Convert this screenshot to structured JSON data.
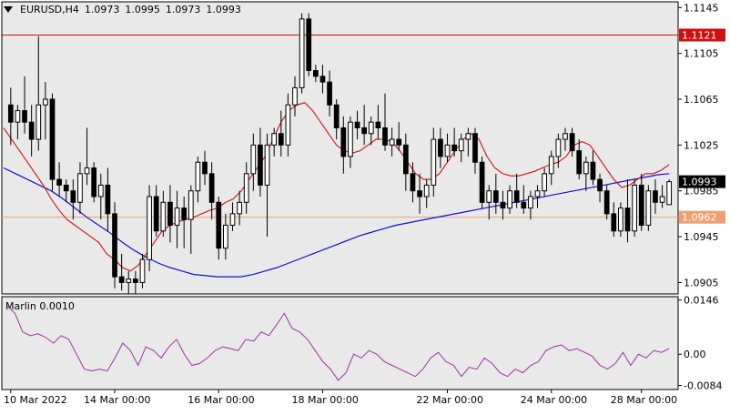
{
  "header": {
    "symbol": "EURUSD,H4",
    "open": "1.0973",
    "high": "1.0995",
    "low": "1.0973",
    "close": "1.0993"
  },
  "indicator": {
    "label": "Marlin 0.0010"
  },
  "colors": {
    "background": "#e9e9e9",
    "candle": "#000000",
    "resistance_line": "#d01010",
    "current_line": "#f0a070",
    "ma_fast": "#d01010",
    "ma_slow": "#1010d0",
    "oscillator": "#a030a0"
  },
  "chart_data": {
    "type": "candlestick",
    "price_axis": {
      "ticks": [
        "1.1145",
        "1.1105",
        "1.1065",
        "1.1025",
        "1.0985",
        "1.0945",
        "1.0905"
      ],
      "range": [
        1.0895,
        1.115
      ]
    },
    "levels": [
      {
        "value": 1.1121,
        "label": "1.1121",
        "color": "#d01010",
        "tag_bg": "#d01010",
        "tag_fg": "#ffffff"
      },
      {
        "value": 1.0962,
        "label": "1.0962",
        "color": "#f0a070",
        "tag_bg": "#f0a070",
        "tag_fg": "#ffffff"
      }
    ],
    "current_price": {
      "value": 1.0993,
      "label": "1.0993"
    },
    "x_labels": [
      "10 Mar 2022",
      "14 Mar 00:00",
      "16 Mar 00:00",
      "18 Mar 00:00",
      "22 Mar 00:00",
      "24 Mar 00:00",
      "28 Mar 00:00"
    ],
    "candles": [
      [
        1.106,
        1.1075,
        1.1025,
        1.1045
      ],
      [
        1.1045,
        1.106,
        1.103,
        1.1055
      ],
      [
        1.1055,
        1.1085,
        1.1035,
        1.1045
      ],
      [
        1.1045,
        1.106,
        1.1015,
        1.103
      ],
      [
        1.103,
        1.112,
        1.102,
        1.106
      ],
      [
        1.106,
        1.108,
        1.103,
        1.1065
      ],
      [
        1.1065,
        1.107,
        1.0985,
        1.0995
      ],
      [
        1.0995,
        1.101,
        1.098,
        1.099
      ],
      [
        1.099,
        1.0995,
        1.0975,
        1.0985
      ],
      [
        1.0985,
        1.0995,
        1.096,
        1.0975
      ],
      [
        1.0975,
        1.101,
        1.0965,
        1.1
      ],
      [
        1.1,
        1.104,
        1.099,
        1.1005
      ],
      [
        1.1005,
        1.101,
        1.0975,
        1.098
      ],
      [
        1.098,
        1.1,
        1.096,
        1.099
      ],
      [
        1.099,
        1.1005,
        1.095,
        1.0965
      ],
      [
        1.0965,
        1.0975,
        1.09,
        1.091
      ],
      [
        1.091,
        1.093,
        1.0898,
        1.0905
      ],
      [
        1.0905,
        1.0915,
        1.0895,
        1.0908
      ],
      [
        1.0908,
        1.0915,
        1.0895,
        1.0905
      ],
      [
        1.0905,
        1.093,
        1.09,
        1.0925
      ],
      [
        1.0925,
        1.099,
        1.0915,
        1.098
      ],
      [
        1.098,
        1.099,
        1.0945,
        1.095
      ],
      [
        1.095,
        1.0985,
        1.0945,
        1.0975
      ],
      [
        1.0975,
        1.099,
        1.094,
        1.0955
      ],
      [
        1.0955,
        1.0985,
        1.0935,
        1.097
      ],
      [
        1.097,
        1.098,
        1.0935,
        1.096
      ],
      [
        1.096,
        1.099,
        1.093,
        1.0985
      ],
      [
        1.0985,
        1.1015,
        1.0975,
        1.101
      ],
      [
        1.101,
        1.102,
        1.099,
        1.1
      ],
      [
        1.1,
        1.101,
        1.096,
        1.0975
      ],
      [
        1.0975,
        1.098,
        1.0925,
        1.0935
      ],
      [
        1.0935,
        1.0965,
        1.0925,
        1.0955
      ],
      [
        1.0955,
        1.0975,
        1.095,
        1.0965
      ],
      [
        1.0965,
        1.0985,
        1.0955,
        1.0975
      ],
      [
        1.0975,
        1.101,
        1.0965,
        1.1
      ],
      [
        1.1,
        1.1035,
        1.0985,
        1.1025
      ],
      [
        1.1025,
        1.104,
        1.098,
        1.099
      ],
      [
        1.099,
        1.1035,
        1.0945,
        1.1025
      ],
      [
        1.1025,
        1.104,
        1.1015,
        1.1035
      ],
      [
        1.1035,
        1.1055,
        1.1015,
        1.1025
      ],
      [
        1.1025,
        1.107,
        1.1015,
        1.106
      ],
      [
        1.106,
        1.1085,
        1.105,
        1.1075
      ],
      [
        1.1075,
        1.114,
        1.107,
        1.1135
      ],
      [
        1.1135,
        1.114,
        1.1085,
        1.109
      ],
      [
        1.109,
        1.1095,
        1.108,
        1.1085
      ],
      [
        1.1085,
        1.1095,
        1.107,
        1.108
      ],
      [
        1.108,
        1.109,
        1.105,
        1.106
      ],
      [
        1.106,
        1.1065,
        1.103,
        1.104
      ],
      [
        1.104,
        1.105,
        1.1,
        1.1015
      ],
      [
        1.1015,
        1.105,
        1.1005,
        1.1045
      ],
      [
        1.1045,
        1.1055,
        1.103,
        1.104
      ],
      [
        1.104,
        1.106,
        1.1025,
        1.1035
      ],
      [
        1.1035,
        1.105,
        1.1025,
        1.1045
      ],
      [
        1.1045,
        1.106,
        1.103,
        1.104
      ],
      [
        1.104,
        1.107,
        1.102,
        1.1025
      ],
      [
        1.1025,
        1.104,
        1.1015,
        1.103
      ],
      [
        1.103,
        1.1045,
        1.102,
        1.1025
      ],
      [
        1.1025,
        1.1035,
        1.0985,
        1.1
      ],
      [
        1.1,
        1.101,
        1.0975,
        1.0985
      ],
      [
        1.0985,
        1.1,
        1.0965,
        1.098
      ],
      [
        1.098,
        1.0995,
        1.097,
        1.099
      ],
      [
        1.099,
        1.104,
        1.098,
        1.103
      ],
      [
        1.103,
        1.104,
        1.1005,
        1.1015
      ],
      [
        1.1015,
        1.1035,
        1.101,
        1.1025
      ],
      [
        1.1025,
        1.104,
        1.1015,
        1.102
      ],
      [
        1.102,
        1.1035,
        1.101,
        1.103
      ],
      [
        1.103,
        1.104,
        1.1015,
        1.1035
      ],
      [
        1.1035,
        1.104,
        1.1,
        1.101
      ],
      [
        1.101,
        1.1015,
        1.097,
        1.0975
      ],
      [
        1.0975,
        1.099,
        1.096,
        1.0985
      ],
      [
        1.0985,
        1.1,
        1.0965,
        1.0975
      ],
      [
        1.0975,
        1.0985,
        1.096,
        1.097
      ],
      [
        1.097,
        1.099,
        1.0965,
        1.0985
      ],
      [
        1.0985,
        1.1,
        1.097,
        1.0975
      ],
      [
        1.0975,
        1.099,
        1.0965,
        1.097
      ],
      [
        1.097,
        1.0985,
        1.096,
        1.098
      ],
      [
        1.098,
        1.099,
        1.097,
        1.0985
      ],
      [
        1.0985,
        1.1005,
        1.098,
        1.1
      ],
      [
        1.1,
        1.102,
        1.099,
        1.1015
      ],
      [
        1.1015,
        1.1035,
        1.1005,
        1.103
      ],
      [
        1.103,
        1.104,
        1.102,
        1.1035
      ],
      [
        1.1035,
        1.104,
        1.1015,
        1.102
      ],
      [
        1.102,
        1.103,
        1.0995,
        1.1
      ],
      [
        1.1,
        1.1015,
        1.0985,
        1.101
      ],
      [
        1.101,
        1.102,
        1.099,
        1.0995
      ],
      [
        1.0995,
        1.1,
        1.0975,
        1.0985
      ],
      [
        1.0985,
        1.099,
        1.096,
        1.0965
      ],
      [
        1.0965,
        1.0975,
        1.0945,
        1.095
      ],
      [
        1.095,
        1.0975,
        1.0945,
        1.097
      ],
      [
        1.097,
        1.0995,
        1.094,
        1.095
      ],
      [
        1.095,
        1.0995,
        1.0945,
        1.099
      ],
      [
        1.099,
        1.1,
        1.095,
        1.0955
      ],
      [
        1.0955,
        1.099,
        1.095,
        1.0985
      ],
      [
        1.0985,
        1.0995,
        1.0965,
        1.0975
      ],
      [
        1.0975,
        1.099,
        1.097,
        1.098
      ],
      [
        1.0973,
        1.0995,
        1.0973,
        1.0993
      ]
    ],
    "ma_fast": [
      1.104,
      1.103,
      1.102,
      1.101,
      1.1,
      1.099,
      1.0978,
      1.0968,
      1.096,
      1.0955,
      1.095,
      1.0945,
      1.094,
      1.093,
      1.0925,
      1.0918,
      1.0915,
      1.092,
      1.093,
      1.094,
      1.095,
      1.0955,
      1.0958,
      1.096,
      1.0962,
      1.0965,
      1.0968,
      1.097,
      1.0975,
      1.0978,
      1.0985,
      1.0995,
      1.1005,
      1.1015,
      1.103,
      1.1045,
      1.1055,
      1.106,
      1.1062,
      1.1055,
      1.1045,
      1.1035,
      1.1025,
      1.102,
      1.1018,
      1.102,
      1.1025,
      1.103,
      1.103,
      1.1028,
      1.102,
      1.101,
      1.1,
      1.0995,
      1.0995,
      1.1,
      1.101,
      1.102,
      1.103,
      1.1035,
      1.103,
      1.1015,
      1.1005,
      1.1,
      1.0998,
      1.0998,
      1.1,
      1.1002,
      1.1005,
      1.1008,
      1.101,
      1.1015,
      1.1025,
      1.1028,
      1.1025,
      1.1015,
      1.1005,
      1.0995,
      1.0988,
      1.099,
      1.0995,
      1.1,
      1.1,
      1.1003,
      1.1008
    ],
    "ma_slow": [
      1.1005,
      1.1,
      1.0995,
      1.099,
      1.0985,
      1.0978,
      1.097,
      1.0962,
      1.0955,
      1.0948,
      1.094,
      1.0933,
      1.0927,
      1.0922,
      1.0918,
      1.0915,
      1.0912,
      1.0911,
      1.091,
      1.091,
      1.091,
      1.0912,
      1.0915,
      1.0918,
      1.0922,
      1.0926,
      1.093,
      1.0934,
      1.0938,
      1.0942,
      1.0946,
      1.0949,
      1.0952,
      1.0955,
      1.0957,
      1.0959,
      1.0961,
      1.0963,
      1.0965,
      1.0967,
      1.0969,
      1.0971,
      1.0973,
      1.0975,
      1.0977,
      1.0979,
      1.0981,
      1.0983,
      1.0985,
      1.0987,
      1.0989,
      1.0991,
      1.0993,
      1.0995,
      1.0997,
      1.0999,
      1.1
    ],
    "oscillator": {
      "ticks": [
        "0.0146",
        "0.00",
        "-0.0084"
      ],
      "range": [
        -0.0095,
        0.0155
      ],
      "values": [
        0.013,
        0.011,
        0.006,
        0.005,
        0.0055,
        0.0045,
        0.003,
        0.005,
        0.004,
        0.0,
        -0.004,
        -0.0045,
        -0.004,
        -0.0045,
        -0.001,
        0.003,
        0.001,
        -0.003,
        0.002,
        0.001,
        -0.001,
        0.002,
        0.004,
        0.0,
        -0.003,
        -0.0025,
        -0.001,
        0.001,
        0.002,
        0.0015,
        0.001,
        0.004,
        0.0035,
        0.006,
        0.005,
        0.008,
        0.011,
        0.007,
        0.006,
        0.004,
        0.001,
        -0.002,
        -0.004,
        -0.007,
        -0.005,
        0.0,
        -0.001,
        0.001,
        0.0,
        -0.002,
        -0.003,
        -0.004,
        -0.005,
        -0.006,
        -0.004,
        -0.001,
        0.0005,
        -0.002,
        -0.003,
        -0.006,
        -0.0035,
        -0.004,
        -0.001,
        -0.0025,
        -0.005,
        -0.006,
        -0.004,
        -0.005,
        -0.003,
        -0.002,
        0.001,
        0.002,
        0.0025,
        0.001,
        0.0015,
        0.0005,
        -0.0005,
        -0.003,
        -0.004,
        -0.0025,
        0.0005,
        -0.003,
        0.0,
        -0.001,
        0.001,
        0.0005,
        0.0015
      ]
    }
  }
}
